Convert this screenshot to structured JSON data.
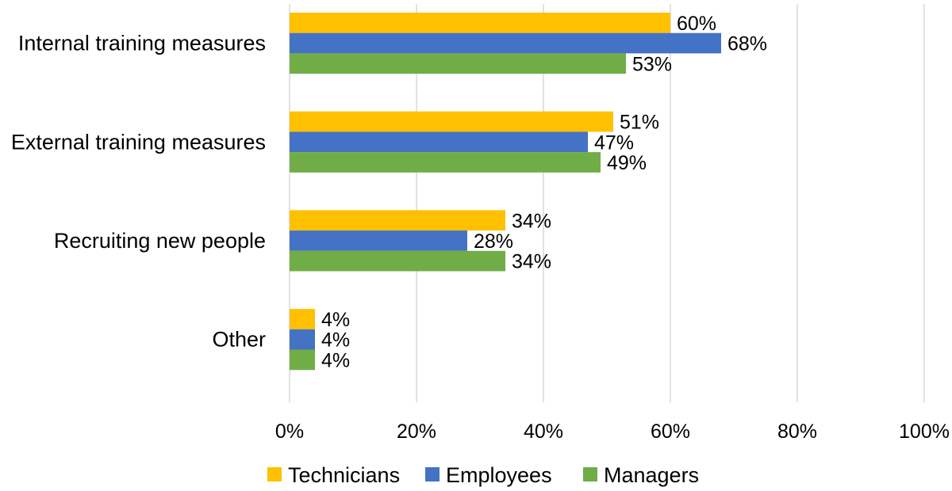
{
  "chart_data": {
    "type": "bar",
    "orientation": "horizontal",
    "categories": [
      "Internal training measures",
      "External training measures",
      "Recruiting new people",
      "Other"
    ],
    "series": [
      {
        "name": "Technicians",
        "color": "#FFC000",
        "values": [
          60,
          51,
          34,
          4
        ],
        "labels": [
          "60%",
          "51%",
          "34%",
          "4%"
        ]
      },
      {
        "name": "Employees",
        "color": "#4472C4",
        "values": [
          68,
          47,
          28,
          4
        ],
        "labels": [
          "68%",
          "47%",
          "28%",
          "4%"
        ]
      },
      {
        "name": "Managers",
        "color": "#70AD47",
        "values": [
          53,
          49,
          34,
          4
        ],
        "labels": [
          "53%",
          "49%",
          "34%",
          "4%"
        ]
      }
    ],
    "xlim": [
      0,
      100
    ],
    "xticks": [
      0,
      20,
      40,
      60,
      80,
      100
    ],
    "xtick_labels": [
      "0%",
      "20%",
      "40%",
      "60%",
      "80%",
      "100%"
    ],
    "grid": true,
    "legend_position": "bottom",
    "title": "",
    "xlabel": "",
    "ylabel": ""
  }
}
